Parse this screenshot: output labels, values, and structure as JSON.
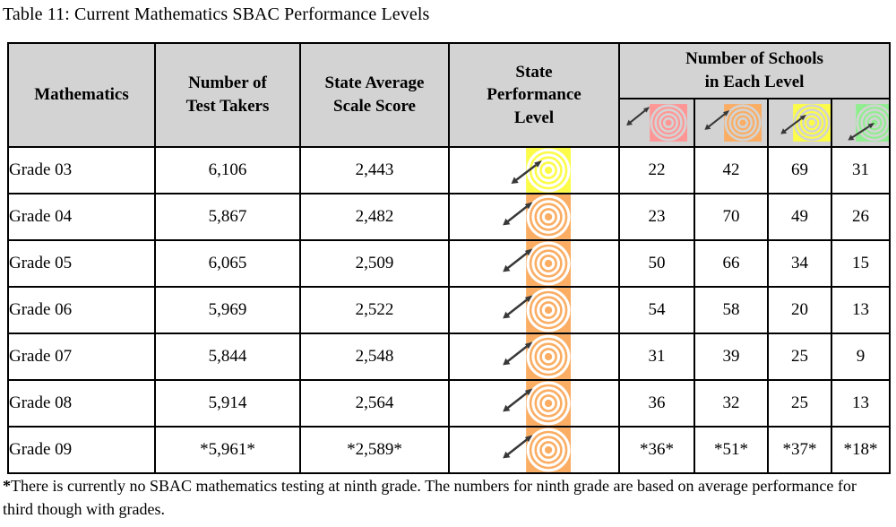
{
  "title": "Table 11: Current Mathematics SBAC Performance Levels",
  "colors": {
    "header_bg": "#D3D3D3",
    "border": "#000000",
    "arrow": "#383838"
  },
  "performance_levels": {
    "red": {
      "color": "#FF9696",
      "arrow": "misses-target"
    },
    "orange": {
      "color": "#FAAD63",
      "arrow": "hits-outer-edge"
    },
    "yellow": {
      "color": "#FCFC48",
      "arrow": "hits-mid-rings"
    },
    "green": {
      "color": "#90EE90",
      "arrow": "hits-bullseye"
    }
  },
  "table": {
    "headers": {
      "mathematics": {
        "lines": [
          "Mathematics"
        ]
      },
      "test_takers": {
        "lines": [
          "Number of",
          "Test Takers"
        ]
      },
      "scale_score": {
        "lines": [
          "State Average",
          "Scale Score"
        ]
      },
      "performance": {
        "lines": [
          "State",
          "Performance",
          "Level"
        ]
      },
      "schools_group": {
        "lines": [
          "Number of Schools",
          "in Each Level"
        ]
      }
    },
    "school_level_columns": [
      "red",
      "orange",
      "yellow",
      "green"
    ],
    "rows": [
      {
        "grade": "Grade 03",
        "test_takers": "6,106",
        "scale_score": "2,443",
        "performance_level": "yellow",
        "schools": [
          "22",
          "42",
          "69",
          "31"
        ]
      },
      {
        "grade": "Grade 04",
        "test_takers": "5,867",
        "scale_score": "2,482",
        "performance_level": "orange",
        "schools": [
          "23",
          "70",
          "49",
          "26"
        ]
      },
      {
        "grade": "Grade 05",
        "test_takers": "6,065",
        "scale_score": "2,509",
        "performance_level": "orange",
        "schools": [
          "50",
          "66",
          "34",
          "15"
        ]
      },
      {
        "grade": "Grade 06",
        "test_takers": "5,969",
        "scale_score": "2,522",
        "performance_level": "orange",
        "schools": [
          "54",
          "58",
          "20",
          "13"
        ]
      },
      {
        "grade": "Grade 07",
        "test_takers": "5,844",
        "scale_score": "2,548",
        "performance_level": "orange",
        "schools": [
          "31",
          "39",
          "25",
          "9"
        ]
      },
      {
        "grade": "Grade 08",
        "test_takers": "5,914",
        "scale_score": "2,564",
        "performance_level": "orange",
        "schools": [
          "36",
          "32",
          "25",
          "13"
        ]
      },
      {
        "grade": "Grade 09",
        "test_takers": "*5,961*",
        "scale_score": "*2,589*",
        "performance_level": "orange",
        "schools": [
          "*36*",
          "*51*",
          "*37*",
          "*18*"
        ]
      }
    ]
  },
  "footnote": {
    "marker": "*",
    "text": "There is currently no SBAC mathematics testing at ninth grade.  The numbers for ninth grade are based on average performance for third though with grades."
  }
}
